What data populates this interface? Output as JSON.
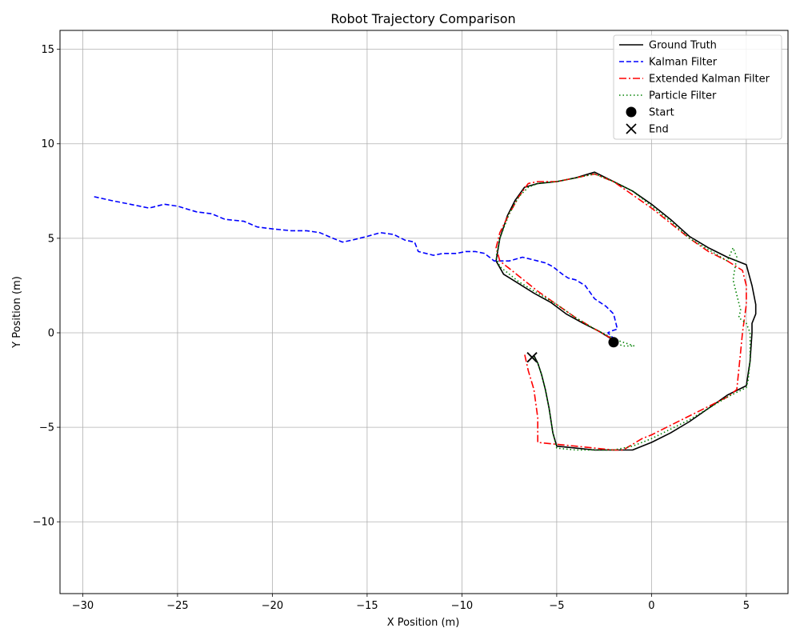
{
  "chart_data": {
    "type": "line",
    "title": "Robot Trajectory Comparison",
    "xlabel": "X Position (m)",
    "ylabel": "Y Position (m)",
    "xlim": [
      -31.2,
      7.2
    ],
    "ylim": [
      -13.8,
      16.0
    ],
    "xticks": [
      -30,
      -25,
      -20,
      -15,
      -10,
      -5,
      0,
      5
    ],
    "yticks": [
      -10,
      -5,
      0,
      5,
      10,
      15
    ],
    "xtick_labels": [
      "−30",
      "−25",
      "−20",
      "−15",
      "−10",
      "−5",
      "0",
      "5"
    ],
    "ytick_labels": [
      "−10",
      "−5",
      "0",
      "5",
      "10",
      "15"
    ],
    "grid": true,
    "legend_position": "top-right",
    "series": [
      {
        "name": "Ground Truth",
        "color": "#000000",
        "style": "solid",
        "x": [
          -2.0,
          -2.8,
          -3.6,
          -4.5,
          -5.3,
          -6.2,
          -7.0,
          -7.8,
          -8.2,
          -8.0,
          -7.6,
          -7.2,
          -6.7,
          -6.0,
          -5.0,
          -4.0,
          -3.0,
          -2.0,
          -1.0,
          0.0,
          1.0,
          2.0,
          3.0,
          4.0,
          5.0,
          5.3,
          5.5,
          5.5,
          5.3,
          5.3,
          5.2,
          5.0,
          4.0,
          3.0,
          2.0,
          1.0,
          0.0,
          -0.5,
          -1.0,
          -2.0,
          -3.0,
          -4.0,
          -5.0,
          -5.2,
          -5.4,
          -5.6,
          -5.8,
          -6.0,
          -6.2
        ],
        "y": [
          -0.4,
          0.1,
          0.5,
          1.0,
          1.6,
          2.1,
          2.6,
          3.1,
          3.8,
          5.0,
          6.2,
          7.0,
          7.7,
          7.9,
          8.0,
          8.2,
          8.5,
          8.0,
          7.5,
          6.8,
          6.0,
          5.1,
          4.5,
          4.0,
          3.6,
          2.5,
          1.5,
          1.0,
          0.5,
          0.0,
          -1.5,
          -2.8,
          -3.3,
          -4.0,
          -4.7,
          -5.3,
          -5.8,
          -6.0,
          -6.2,
          -6.2,
          -6.2,
          -6.1,
          -6.0,
          -5.3,
          -4.0,
          -3.0,
          -2.2,
          -1.6,
          -1.2
        ]
      },
      {
        "name": "Kalman Filter",
        "color": "#0000ff",
        "style": "dashed",
        "x": [
          -29.4,
          -28.5,
          -27.5,
          -26.5,
          -25.7,
          -25.0,
          -24.0,
          -23.2,
          -22.5,
          -21.5,
          -20.8,
          -20.0,
          -19.0,
          -18.2,
          -17.5,
          -16.8,
          -16.3,
          -15.8,
          -15.0,
          -14.3,
          -13.6,
          -13.0,
          -12.5,
          -12.3,
          -11.5,
          -11.0,
          -10.3,
          -9.8,
          -9.3,
          -8.8,
          -8.3,
          -7.5,
          -6.8,
          -6.0,
          -5.6,
          -5.2,
          -4.7,
          -4.4,
          -4.0,
          -3.5,
          -3.0,
          -2.4,
          -2.0,
          -1.8,
          -2.1,
          -2.3,
          -2.0
        ],
        "y": [
          7.2,
          7.0,
          6.8,
          6.6,
          6.8,
          6.7,
          6.4,
          6.3,
          6.0,
          5.9,
          5.6,
          5.5,
          5.4,
          5.4,
          5.3,
          5.0,
          4.8,
          4.9,
          5.1,
          5.3,
          5.2,
          4.9,
          4.8,
          4.3,
          4.1,
          4.2,
          4.2,
          4.3,
          4.3,
          4.2,
          3.8,
          3.8,
          4.0,
          3.8,
          3.7,
          3.5,
          3.1,
          2.9,
          2.8,
          2.5,
          1.8,
          1.4,
          1.0,
          0.2,
          0.1,
          0.0,
          -0.3
        ]
      },
      {
        "name": "Extended Kalman Filter",
        "color": "#ff0000",
        "style": "dashdot",
        "x": [
          -2.1,
          -3.0,
          -4.0,
          -5.0,
          -6.0,
          -7.0,
          -8.0,
          -8.2,
          -8.0,
          -7.5,
          -7.0,
          -6.5,
          -6.0,
          -5.0,
          -4.0,
          -3.0,
          -2.0,
          -1.0,
          0.0,
          1.0,
          2.0,
          3.0,
          4.0,
          4.8,
          5.0,
          5.0,
          4.8,
          4.7,
          4.6,
          4.5,
          4.0,
          3.0,
          2.0,
          1.0,
          0.0,
          -0.5,
          -1.0,
          -1.5,
          -2.0,
          -3.0,
          -4.0,
          -5.0,
          -6.0,
          -6.0,
          -6.2,
          -6.5,
          -6.7
        ],
        "y": [
          -0.3,
          0.2,
          0.8,
          1.5,
          2.2,
          3.0,
          3.8,
          4.5,
          5.3,
          6.3,
          7.2,
          7.9,
          8.0,
          8.0,
          8.2,
          8.4,
          8.0,
          7.3,
          6.6,
          5.8,
          5.0,
          4.3,
          3.8,
          3.3,
          2.5,
          1.5,
          0.0,
          -1.0,
          -2.0,
          -3.0,
          -3.4,
          -3.9,
          -4.4,
          -4.9,
          -5.4,
          -5.6,
          -5.9,
          -6.2,
          -6.2,
          -6.1,
          -6.0,
          -5.9,
          -5.8,
          -4.5,
          -3.0,
          -2.0,
          -1.1
        ]
      },
      {
        "name": "Particle Filter",
        "color": "#008000",
        "style": "dotted",
        "x": [
          -2.0,
          -1.5,
          -0.9,
          -1.8,
          -3.0,
          -4.0,
          -5.0,
          -6.0,
          -7.0,
          -8.0,
          -8.2,
          -8.0,
          -7.5,
          -7.0,
          -6.5,
          -6.0,
          -5.0,
          -4.0,
          -3.0,
          -2.0,
          -1.0,
          0.0,
          1.0,
          2.0,
          3.0,
          4.0,
          4.3,
          4.5,
          4.3,
          4.5,
          4.7,
          4.6,
          5.0,
          5.2,
          5.2,
          5.1,
          5.0,
          4.0,
          3.0,
          2.0,
          1.0,
          0.0,
          -1.0,
          -2.0,
          -3.0,
          -4.0,
          -5.0,
          -5.2,
          -5.4,
          -5.6,
          -5.8,
          -6.0,
          -6.2
        ],
        "y": [
          -0.5,
          -0.7,
          -0.7,
          -0.4,
          0.2,
          0.8,
          1.5,
          2.1,
          2.7,
          3.5,
          4.0,
          5.0,
          6.3,
          7.2,
          7.7,
          7.9,
          8.0,
          8.2,
          8.4,
          8.0,
          7.5,
          6.7,
          5.9,
          5.0,
          4.4,
          3.8,
          4.5,
          4.0,
          2.8,
          2.0,
          1.2,
          0.8,
          0.5,
          0.0,
          -1.5,
          -2.5,
          -2.9,
          -3.4,
          -4.0,
          -4.6,
          -5.1,
          -5.6,
          -6.0,
          -6.2,
          -6.2,
          -6.2,
          -6.1,
          -5.3,
          -4.0,
          -3.0,
          -2.2,
          -1.6,
          -1.3
        ]
      }
    ],
    "markers": [
      {
        "name": "Start",
        "shape": "circle",
        "x": -2.0,
        "y": -0.5,
        "color": "#000000"
      },
      {
        "name": "End",
        "shape": "x",
        "x": -6.3,
        "y": -1.3,
        "color": "#000000"
      }
    ]
  }
}
